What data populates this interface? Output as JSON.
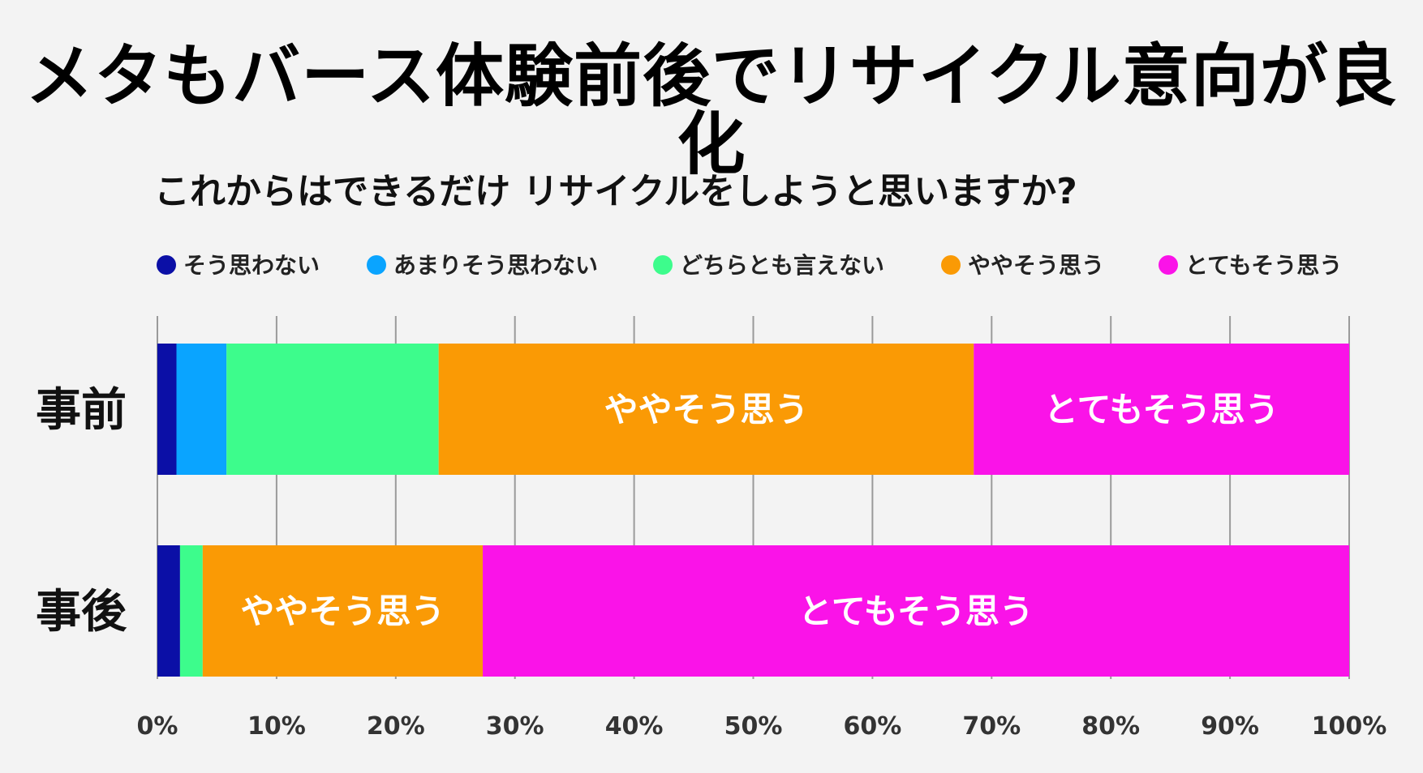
{
  "title": "メタもバース体験前後でリサイクル意向が良化",
  "subtitle": "これからはできるだけ リサイクルをしようと思いますか?",
  "chart_data": {
    "type": "bar",
    "orientation": "horizontal",
    "stacked": true,
    "percent": true,
    "title": "メタもバース体験前後でリサイクル意向が良化",
    "subtitle": "これからはできるだけ リサイクルをしようと思いますか?",
    "categories": [
      "事前",
      "事後"
    ],
    "series": [
      {
        "name": "そう思わない",
        "color": "#0b0fa6",
        "values": [
          1.6,
          1.9
        ]
      },
      {
        "name": "あまりそう思わない",
        "color": "#0aa4ff",
        "values": [
          4.2,
          0.0
        ]
      },
      {
        "name": "どちらとも言えない",
        "color": "#3dfc8c",
        "values": [
          17.8,
          1.9
        ]
      },
      {
        "name": "ややそう思う",
        "color": "#fa9a05",
        "values": [
          44.9,
          23.5
        ]
      },
      {
        "name": "とてもそう思う",
        "color": "#fa13e8",
        "values": [
          31.5,
          72.7
        ]
      }
    ],
    "segment_labels": [
      {
        "category": "事前",
        "series": "ややそう思う",
        "text": "ややそう思う"
      },
      {
        "category": "事前",
        "series": "とてもそう思う",
        "text": "とてもそう思う"
      },
      {
        "category": "事後",
        "series": "ややそう思う",
        "text": "ややそう思う"
      },
      {
        "category": "事後",
        "series": "とてもそう思う",
        "text": "とてもそう思う"
      }
    ],
    "xlim": [
      0,
      100
    ],
    "xticks": [
      "0%",
      "10%",
      "20%",
      "30%",
      "40%",
      "50%",
      "60%",
      "70%",
      "80%",
      "90%",
      "100%"
    ],
    "grid": true,
    "legend_position": "top"
  }
}
